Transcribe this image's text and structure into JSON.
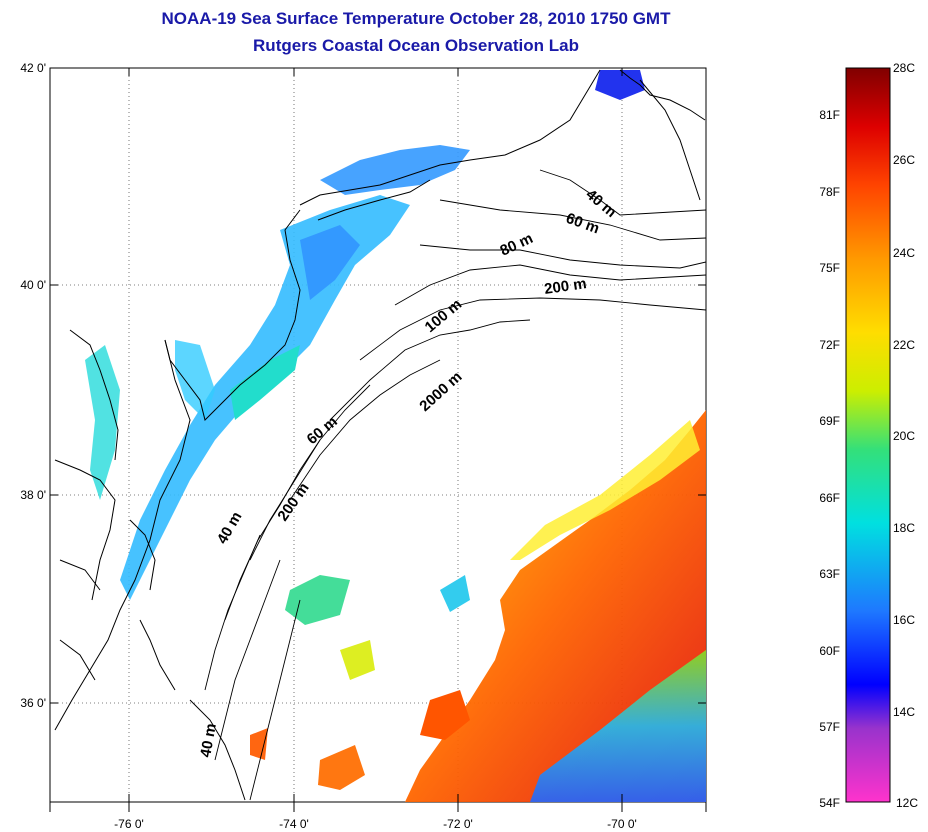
{
  "title": "NOAA-19 Sea Surface Temperature October 28, 2010 1750 GMT",
  "subtitle": "Rutgers Coastal Ocean Observation Lab",
  "map": {
    "lat_ticks": [
      {
        "value": 42,
        "label": "42 0'"
      },
      {
        "value": 40,
        "label": "40 0'"
      },
      {
        "value": 38,
        "label": "38 0'"
      },
      {
        "value": 36,
        "label": "36 0'"
      }
    ],
    "lon_ticks": [
      {
        "value": -76,
        "label": "-76 0'"
      },
      {
        "value": -74,
        "label": "-74 0'"
      },
      {
        "value": -72,
        "label": "-72 0'"
      },
      {
        "value": -70,
        "label": "-70 0'"
      }
    ],
    "depth_labels": [
      "40 m",
      "60 m",
      "80 m",
      "200 m",
      "100 m",
      "2000 m",
      "60 m",
      "40 m",
      "200 m",
      "40 m"
    ]
  },
  "colorbar": {
    "celsius_labels": [
      "28C",
      "26C",
      "24C",
      "22C",
      "20C",
      "18C",
      "16C",
      "14C",
      "12C"
    ],
    "fahrenheit_labels": [
      "81F",
      "78F",
      "75F",
      "72F",
      "69F",
      "66F",
      "63F",
      "60F",
      "57F",
      "54F"
    ],
    "colors": [
      "#ff33cc",
      "#9933cc",
      "#0000ff",
      "#1e78ff",
      "#00e0e0",
      "#33e07a",
      "#ccee00",
      "#ffdd00",
      "#ff9900",
      "#ff5500",
      "#e60000",
      "#800000"
    ]
  }
}
